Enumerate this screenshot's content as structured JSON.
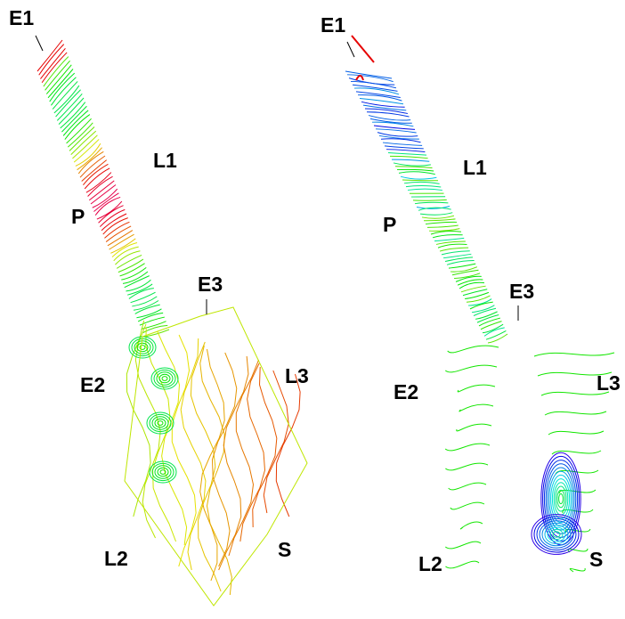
{
  "panels": [
    {
      "labels": [
        "E1",
        "L1",
        "P",
        "E3",
        "E2",
        "L3",
        "L2",
        "S"
      ]
    },
    {
      "labels": [
        "E1",
        "L1",
        "P",
        "E3",
        "E2",
        "L3",
        "L2",
        "S"
      ]
    }
  ]
}
